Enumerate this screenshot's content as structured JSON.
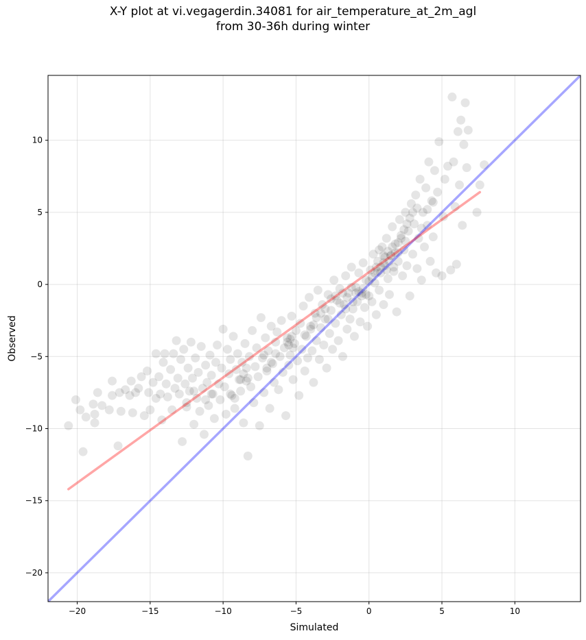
{
  "chart_data": {
    "type": "scatter",
    "title_lines": [
      "X-Y plot at vi.vegagerdin.34081 for air_temperature_at_2m_agl",
      "from 30-36h during winter"
    ],
    "xlabel": "Simulated",
    "ylabel": "Observed",
    "xlim": [
      -22,
      14.5
    ],
    "ylim": [
      -22,
      14.5
    ],
    "xticks": [
      -20,
      -15,
      -10,
      -5,
      0,
      5,
      10
    ],
    "yticks": [
      -20,
      -15,
      -10,
      -5,
      0,
      5,
      10
    ],
    "grid": true,
    "point_color": "#000000",
    "point_alpha": 0.1,
    "reference_line": {
      "label": "1:1",
      "color": "#0000ff",
      "from": [
        -22,
        -22
      ],
      "to": [
        14.5,
        14.5
      ]
    },
    "fit_line": {
      "color": "#ff0000",
      "from": [
        -20.6,
        -14.2
      ],
      "to": [
        7.6,
        6.4
      ]
    },
    "points": [
      [
        -20.6,
        -9.8
      ],
      [
        -20.1,
        -8.0
      ],
      [
        -19.8,
        -8.7
      ],
      [
        -19.6,
        -11.6
      ],
      [
        -19.4,
        -9.2
      ],
      [
        -18.9,
        -8.3
      ],
      [
        -18.8,
        -9.0
      ],
      [
        -18.8,
        -9.6
      ],
      [
        -18.6,
        -7.5
      ],
      [
        -18.3,
        -8.4
      ],
      [
        -17.8,
        -8.7
      ],
      [
        -17.6,
        -7.7
      ],
      [
        -17.6,
        -6.7
      ],
      [
        -17.2,
        -11.2
      ],
      [
        -17.1,
        -7.5
      ],
      [
        -17.0,
        -8.8
      ],
      [
        -16.7,
        -7.3
      ],
      [
        -16.4,
        -7.7
      ],
      [
        -16.3,
        -6.7
      ],
      [
        -16.2,
        -8.9
      ],
      [
        -16.0,
        -7.5
      ],
      [
        -15.8,
        -7.2
      ],
      [
        -15.6,
        -6.4
      ],
      [
        -15.4,
        -9.1
      ],
      [
        -15.2,
        -6.0
      ],
      [
        -15.1,
        -7.5
      ],
      [
        -15.0,
        -8.7
      ],
      [
        -14.8,
        -6.8
      ],
      [
        -14.6,
        -7.9
      ],
      [
        -14.6,
        -4.8
      ],
      [
        -14.4,
        -6.4
      ],
      [
        -14.3,
        -7.6
      ],
      [
        -14.2,
        -9.4
      ],
      [
        -14.1,
        -5.4
      ],
      [
        -14.0,
        -4.8
      ],
      [
        -13.9,
        -6.9
      ],
      [
        -13.8,
        -7.8
      ],
      [
        -13.6,
        -5.9
      ],
      [
        -13.5,
        -8.7
      ],
      [
        -13.4,
        -4.8
      ],
      [
        -13.3,
        -7.2
      ],
      [
        -13.2,
        -3.9
      ],
      [
        -13.1,
        -6.5
      ],
      [
        -13.0,
        -7.6
      ],
      [
        -12.9,
        -5.2
      ],
      [
        -12.8,
        -10.9
      ],
      [
        -12.7,
        -4.5
      ],
      [
        -12.6,
        -6.9
      ],
      [
        -12.5,
        -8.2
      ],
      [
        -12.4,
        -5.8
      ],
      [
        -12.3,
        -7.4
      ],
      [
        -12.2,
        -4.0
      ],
      [
        -12.1,
        -6.5
      ],
      [
        -12.0,
        -9.7
      ],
      [
        -11.9,
        -5.1
      ],
      [
        -11.8,
        -7.9
      ],
      [
        -11.7,
        -6.1
      ],
      [
        -11.6,
        -8.8
      ],
      [
        -11.5,
        -4.3
      ],
      [
        -11.4,
        -7.2
      ],
      [
        -11.3,
        -10.4
      ],
      [
        -11.2,
        -5.6
      ],
      [
        -11.1,
        -6.8
      ],
      [
        -11.0,
        -8.4
      ],
      [
        -10.9,
        -4.9
      ],
      [
        -10.8,
        -6.3
      ],
      [
        -10.7,
        -7.6
      ],
      [
        -10.6,
        -9.3
      ],
      [
        -10.5,
        -5.4
      ],
      [
        -10.4,
        -4.2
      ],
      [
        -10.3,
        -6.9
      ],
      [
        -10.2,
        -8.0
      ],
      [
        -10.1,
        -5.8
      ],
      [
        -10.0,
        -3.1
      ],
      [
        -9.9,
        -7.1
      ],
      [
        -9.8,
        -9.0
      ],
      [
        -9.7,
        -4.5
      ],
      [
        -9.6,
        -6.2
      ],
      [
        -9.5,
        -5.2
      ],
      [
        -9.4,
        -7.7
      ],
      [
        -9.3,
        -3.6
      ],
      [
        -9.2,
        -8.6
      ],
      [
        -9.1,
        -5.9
      ],
      [
        -9.0,
        -4.8
      ],
      [
        -8.9,
        -6.6
      ],
      [
        -8.8,
        -7.4
      ],
      [
        -8.7,
        -5.4
      ],
      [
        -8.6,
        -9.6
      ],
      [
        -8.5,
        -4.1
      ],
      [
        -8.4,
        -6.7
      ],
      [
        -8.3,
        -11.9
      ],
      [
        -8.2,
        -5.0
      ],
      [
        -8.1,
        -7.1
      ],
      [
        -8.0,
        -3.2
      ],
      [
        -7.9,
        -8.2
      ],
      [
        -7.8,
        -5.7
      ],
      [
        -7.7,
        -4.4
      ],
      [
        -7.6,
        -6.4
      ],
      [
        -7.5,
        -9.8
      ],
      [
        -7.4,
        -2.3
      ],
      [
        -7.3,
        -5.1
      ],
      [
        -7.2,
        -7.5
      ],
      [
        -7.1,
        -3.7
      ],
      [
        -7.0,
        -6.0
      ],
      [
        -6.9,
        -4.6
      ],
      [
        -6.8,
        -8.6
      ],
      [
        -6.7,
        -2.9
      ],
      [
        -6.6,
        -5.5
      ],
      [
        -6.5,
        -6.8
      ],
      [
        -6.4,
        -4.0
      ],
      [
        -6.3,
        -3.3
      ],
      [
        -6.2,
        -7.3
      ],
      [
        -6.1,
        -5.0
      ],
      [
        -6.0,
        -2.5
      ],
      [
        -5.9,
        -6.1
      ],
      [
        -5.8,
        -4.4
      ],
      [
        -5.7,
        -9.1
      ],
      [
        -5.6,
        -3.7
      ],
      [
        -5.5,
        -5.6
      ],
      [
        -5.4,
        -4.9
      ],
      [
        -5.3,
        -2.2
      ],
      [
        -5.2,
        -6.6
      ],
      [
        -5.1,
        -4.1
      ],
      [
        -5.0,
        -3.2
      ],
      [
        -4.9,
        -5.3
      ],
      [
        -4.8,
        -7.7
      ],
      [
        -4.7,
        -2.7
      ],
      [
        -4.6,
        -4.5
      ],
      [
        -4.5,
        -1.5
      ],
      [
        -4.4,
        -6.0
      ],
      [
        -4.3,
        -3.6
      ],
      [
        -4.2,
        -5.1
      ],
      [
        -4.1,
        -0.9
      ],
      [
        -4.0,
        -2.9
      ],
      [
        -3.9,
        -4.6
      ],
      [
        -3.8,
        -6.8
      ],
      [
        -3.7,
        -2.0
      ],
      [
        -3.6,
        -3.9
      ],
      [
        -3.5,
        -0.4
      ],
      [
        -3.4,
        -5.2
      ],
      [
        -3.3,
        -3.0
      ],
      [
        -3.2,
        -1.4
      ],
      [
        -3.1,
        -4.2
      ],
      [
        -3.0,
        -2.4
      ],
      [
        -2.9,
        -5.8
      ],
      [
        -2.8,
        -0.7
      ],
      [
        -2.7,
        -3.4
      ],
      [
        -2.6,
        -1.8
      ],
      [
        -2.5,
        -4.5
      ],
      [
        -2.4,
        0.3
      ],
      [
        -2.3,
        -2.7
      ],
      [
        -2.2,
        -1.1
      ],
      [
        -2.1,
        -3.9
      ],
      [
        -2.0,
        -0.3
      ],
      [
        -1.9,
        -2.1
      ],
      [
        -1.8,
        -5.0
      ],
      [
        -1.7,
        -1.4
      ],
      [
        -1.6,
        0.6
      ],
      [
        -1.5,
        -3.1
      ],
      [
        -1.4,
        -0.6
      ],
      [
        -1.3,
        -2.4
      ],
      [
        -1.2,
        1.2
      ],
      [
        -1.1,
        -1.7
      ],
      [
        -1.0,
        -3.6
      ],
      [
        -0.9,
        -0.2
      ],
      [
        -0.8,
        -1.2
      ],
      [
        -0.7,
        0.8
      ],
      [
        -0.6,
        -2.6
      ],
      [
        -0.5,
        -0.6
      ],
      [
        -0.4,
        1.5
      ],
      [
        -0.3,
        -1.6
      ],
      [
        -0.2,
        0.3
      ],
      [
        -0.1,
        -2.9
      ],
      [
        0.0,
        -0.8
      ],
      [
        0.1,
        1.0
      ],
      [
        0.2,
        -1.2
      ],
      [
        0.3,
        2.1
      ],
      [
        0.4,
        0.1
      ],
      [
        0.5,
        -2.1
      ],
      [
        0.6,
        1.6
      ],
      [
        0.7,
        -0.4
      ],
      [
        0.8,
        0.8
      ],
      [
        0.9,
        2.6
      ],
      [
        1.0,
        -1.4
      ],
      [
        1.1,
        1.3
      ],
      [
        1.2,
        3.2
      ],
      [
        1.3,
        0.4
      ],
      [
        1.4,
        -0.7
      ],
      [
        1.5,
        2.0
      ],
      [
        1.6,
        4.0
      ],
      [
        1.7,
        0.9
      ],
      [
        1.8,
        2.8
      ],
      [
        1.9,
        -1.9
      ],
      [
        2.0,
        1.6
      ],
      [
        2.1,
        4.5
      ],
      [
        2.2,
        3.2
      ],
      [
        2.3,
        0.6
      ],
      [
        2.4,
        2.4
      ],
      [
        2.5,
        5.0
      ],
      [
        2.6,
        1.3
      ],
      [
        2.7,
        3.7
      ],
      [
        2.8,
        -0.8
      ],
      [
        2.9,
        5.6
      ],
      [
        3.0,
        2.1
      ],
      [
        3.1,
        4.2
      ],
      [
        3.2,
        6.2
      ],
      [
        3.3,
        1.1
      ],
      [
        3.4,
        3.2
      ],
      [
        3.5,
        7.3
      ],
      [
        3.6,
        0.3
      ],
      [
        3.7,
        5.0
      ],
      [
        3.8,
        2.6
      ],
      [
        3.9,
        6.7
      ],
      [
        4.0,
        4.1
      ],
      [
        4.1,
        8.5
      ],
      [
        4.2,
        1.6
      ],
      [
        4.3,
        5.8
      ],
      [
        4.4,
        3.3
      ],
      [
        4.5,
        7.9
      ],
      [
        4.6,
        0.8
      ],
      [
        4.7,
        6.4
      ],
      [
        4.8,
        9.9
      ],
      [
        5.0,
        0.6
      ],
      [
        5.1,
        4.7
      ],
      [
        5.2,
        7.3
      ],
      [
        5.4,
        8.2
      ],
      [
        5.6,
        1.0
      ],
      [
        5.7,
        13.0
      ],
      [
        5.8,
        8.5
      ],
      [
        5.9,
        5.4
      ],
      [
        6.0,
        1.4
      ],
      [
        6.1,
        10.6
      ],
      [
        6.2,
        6.9
      ],
      [
        6.3,
        11.4
      ],
      [
        6.4,
        4.1
      ],
      [
        6.5,
        9.7
      ],
      [
        6.6,
        12.6
      ],
      [
        6.7,
        8.1
      ],
      [
        6.8,
        10.7
      ],
      [
        7.4,
        5.0
      ],
      [
        7.6,
        6.9
      ],
      [
        7.9,
        8.3
      ],
      [
        -8.8,
        -6.6
      ],
      [
        -8.6,
        -6.2
      ],
      [
        -8.4,
        -5.8
      ],
      [
        -8.3,
        -6.5
      ],
      [
        -5.6,
        -4.0
      ],
      [
        -5.5,
        -4.2
      ],
      [
        -5.4,
        -3.8
      ],
      [
        -5.2,
        -4.4
      ],
      [
        -5.3,
        -3.6
      ],
      [
        -0.9,
        -0.6
      ],
      [
        -0.7,
        -0.5
      ],
      [
        -0.5,
        -0.8
      ],
      [
        -0.4,
        -0.3
      ],
      [
        -0.2,
        -0.7
      ],
      [
        0.0,
        0.2
      ],
      [
        0.2,
        0.5
      ],
      [
        0.4,
        0.8
      ],
      [
        0.6,
        0.9
      ],
      [
        0.8,
        1.2
      ],
      [
        1.0,
        1.5
      ],
      [
        1.1,
        1.9
      ],
      [
        1.3,
        2.3
      ],
      [
        1.5,
        2.0
      ],
      [
        1.6,
        2.6
      ],
      [
        1.8,
        2.2
      ],
      [
        2.0,
        2.9
      ],
      [
        2.2,
        3.4
      ],
      [
        2.4,
        3.8
      ],
      [
        2.6,
        4.2
      ],
      [
        2.8,
        4.6
      ],
      [
        3.0,
        5.0
      ],
      [
        3.3,
        5.3
      ],
      [
        -2.6,
        -1.0
      ],
      [
        -2.3,
        -0.8
      ],
      [
        -2.0,
        -1.3
      ],
      [
        -1.8,
        -0.6
      ],
      [
        -1.5,
        -0.9
      ],
      [
        -1.2,
        -0.2
      ],
      [
        -3.6,
        -2.3
      ],
      [
        -3.3,
        -2.0
      ],
      [
        -3.0,
        -1.7
      ],
      [
        -6.4,
        -4.8
      ],
      [
        -6.7,
        -5.4
      ],
      [
        -7.0,
        -5.8
      ],
      [
        -7.2,
        -4.9
      ],
      [
        -9.5,
        -7.6
      ],
      [
        -9.2,
        -7.9
      ],
      [
        -10.8,
        -7.6
      ],
      [
        -11.2,
        -8.0
      ],
      [
        -12.5,
        -8.5
      ],
      [
        -12.0,
        -7.4
      ],
      [
        -4.4,
        -3.5
      ],
      [
        -4.0,
        -3.1
      ],
      [
        -3.8,
        -2.8
      ],
      [
        -2.8,
        -2.4
      ],
      [
        -1.6,
        -1.7
      ],
      [
        -1.1,
        -1.2
      ],
      [
        0.5,
        1.2
      ],
      [
        0.7,
        2.4
      ],
      [
        1.0,
        2.0
      ],
      [
        1.2,
        1.0
      ],
      [
        1.4,
        1.6
      ],
      [
        1.7,
        1.2
      ],
      [
        2.0,
        2.2
      ],
      [
        2.5,
        3.0
      ],
      [
        3.6,
        3.9
      ],
      [
        4.0,
        5.2
      ],
      [
        4.4,
        5.7
      ]
    ]
  }
}
